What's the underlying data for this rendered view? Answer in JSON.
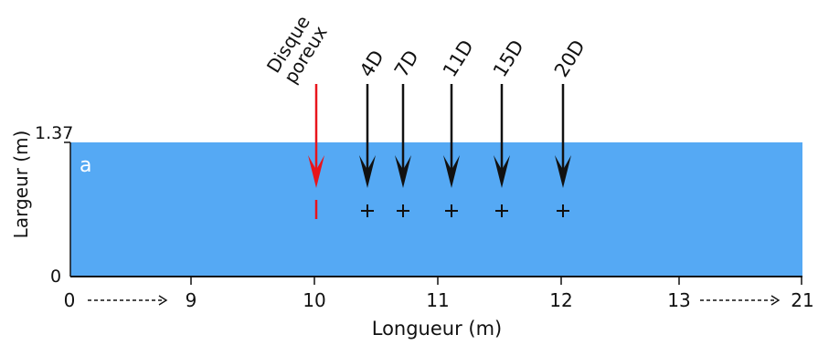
{
  "panel_letter": "a",
  "y_axis": {
    "label": "Largeur (m)",
    "ticks": [
      "1.37",
      "0"
    ]
  },
  "x_axis": {
    "label": "Longueur (m)",
    "ticks": [
      "0",
      "9",
      "10",
      "11",
      "12",
      "13",
      "21"
    ]
  },
  "source_marker": {
    "label_line1": "Disque",
    "label_line2": "poreux",
    "color": "#e8141c"
  },
  "probes": [
    {
      "label": "4D"
    },
    {
      "label": "7D"
    },
    {
      "label": "11D"
    },
    {
      "label": "15D"
    },
    {
      "label": "20D"
    }
  ],
  "colors": {
    "channel": "#55a9f4",
    "arrows": "#111111"
  }
}
